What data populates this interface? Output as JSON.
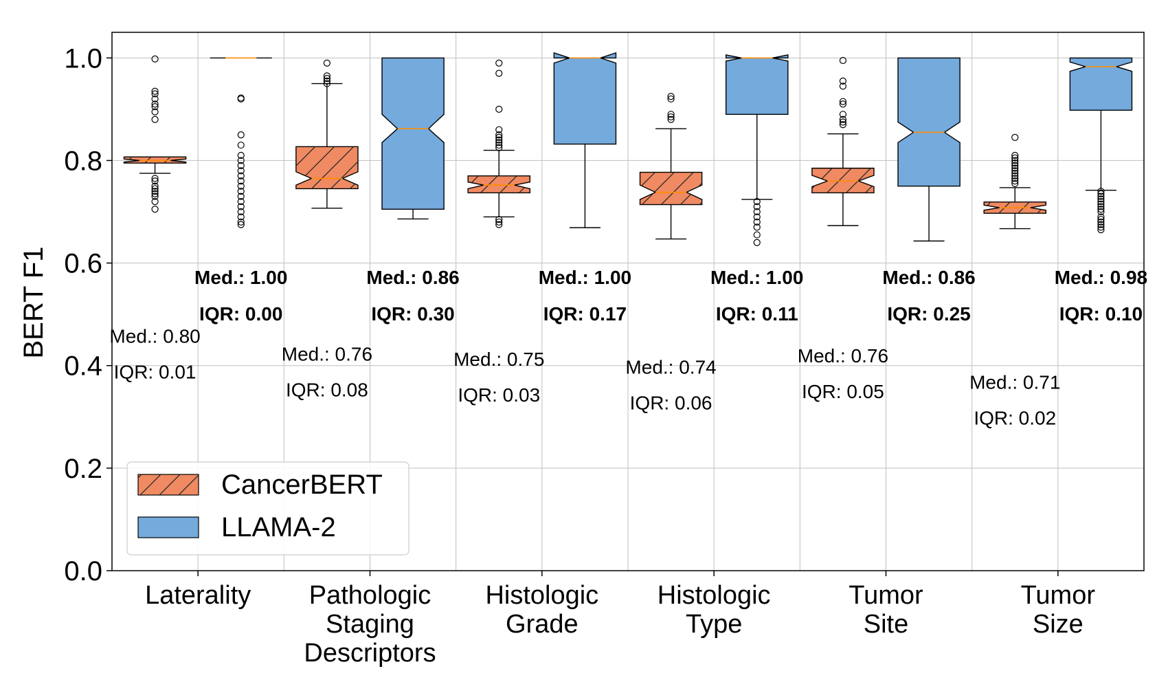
{
  "chart_data": {
    "type": "box",
    "ylabel": "BERT F1",
    "ylim": [
      0.0,
      1.05
    ],
    "yticks": [
      "0.0",
      "0.2",
      "0.4",
      "0.6",
      "0.8",
      "1.0"
    ],
    "grid": true,
    "legend_position": "bottom-left",
    "categories": [
      [
        "Laterality"
      ],
      [
        "Pathologic",
        "Staging",
        "Descriptors"
      ],
      [
        "Histologic",
        "Grade"
      ],
      [
        "Histologic",
        "Type"
      ],
      [
        "Tumor",
        "Site"
      ],
      [
        "Tumor",
        "Size"
      ]
    ],
    "series": [
      {
        "name": "CancerBERT",
        "color": "#ef8a62",
        "hatch": true,
        "boxes": [
          {
            "q1": 0.795,
            "median": 0.8,
            "q3": 0.807,
            "whislo": 0.775,
            "whishi": 0.807,
            "notch_lo": 0.797,
            "notch_hi": 0.803,
            "fliers": [
              0.705,
              0.72,
              0.73,
              0.735,
              0.74,
              0.745,
              0.75,
              0.76,
              0.765,
              0.88,
              0.895,
              0.905,
              0.91,
              0.92,
              0.93,
              0.935,
              0.998
            ],
            "label_median": "Med.: 0.80",
            "label_iqr": "IQR: 0.01",
            "label_y": 0.415
          },
          {
            "q1": 0.745,
            "median": 0.765,
            "q3": 0.827,
            "whislo": 0.707,
            "whishi": 0.95,
            "notch_lo": 0.752,
            "notch_hi": 0.778,
            "fliers": [
              0.95,
              0.955,
              0.96,
              0.965,
              0.99
            ],
            "label_median": "Med.: 0.76",
            "label_iqr": "IQR: 0.08",
            "label_y": 0.38
          },
          {
            "q1": 0.737,
            "median": 0.752,
            "q3": 0.77,
            "whislo": 0.69,
            "whishi": 0.82,
            "notch_lo": 0.745,
            "notch_hi": 0.758,
            "fliers": [
              0.675,
              0.68,
              0.685,
              0.825,
              0.83,
              0.835,
              0.84,
              0.845,
              0.85,
              0.86,
              0.9,
              0.97,
              0.99
            ],
            "label_median": "Med.: 0.75",
            "label_iqr": "IQR: 0.03",
            "label_y": 0.37
          },
          {
            "q1": 0.714,
            "median": 0.738,
            "q3": 0.777,
            "whislo": 0.647,
            "whishi": 0.862,
            "notch_lo": 0.724,
            "notch_hi": 0.752,
            "fliers": [
              0.88,
              0.885,
              0.89,
              0.92,
              0.925
            ],
            "label_median": "Med.: 0.74",
            "label_iqr": "IQR: 0.06",
            "label_y": 0.355
          },
          {
            "q1": 0.737,
            "median": 0.76,
            "q3": 0.785,
            "whislo": 0.673,
            "whishi": 0.852,
            "notch_lo": 0.749,
            "notch_hi": 0.771,
            "fliers": [
              0.87,
              0.875,
              0.88,
              0.89,
              0.91,
              0.915,
              0.945,
              0.955,
              0.995
            ],
            "label_median": "Med.: 0.76",
            "label_iqr": "IQR: 0.05",
            "label_y": 0.377
          },
          {
            "q1": 0.697,
            "median": 0.708,
            "q3": 0.719,
            "whislo": 0.667,
            "whishi": 0.747,
            "notch_lo": 0.703,
            "notch_hi": 0.713,
            "fliers": [
              0.755,
              0.76,
              0.765,
              0.77,
              0.775,
              0.78,
              0.785,
              0.79,
              0.795,
              0.8,
              0.805,
              0.81,
              0.845
            ],
            "label_median": "Med.: 0.71",
            "label_iqr": "IQR: 0.02",
            "label_y": 0.325
          }
        ]
      },
      {
        "name": "LLAMA-2",
        "color": "#74aadc",
        "hatch": false,
        "boxes": [
          {
            "q1": 1.0,
            "median": 1.0,
            "q3": 1.0,
            "whislo": 1.0,
            "whishi": 1.0,
            "notch_lo": 1.0,
            "notch_hi": 1.0,
            "fliers": [
              0.675,
              0.68,
              0.69,
              0.7,
              0.71,
              0.72,
              0.73,
              0.74,
              0.75,
              0.76,
              0.77,
              0.78,
              0.79,
              0.8,
              0.81,
              0.83,
              0.85,
              0.92,
              0.922
            ],
            "label_median": "Med.: 1.00",
            "label_iqr": "IQR: 0.00"
          },
          {
            "q1": 0.705,
            "median": 0.862,
            "q3": 1.0,
            "whislo": 0.686,
            "whishi": 1.0,
            "notch_lo": 0.835,
            "notch_hi": 0.89,
            "fliers": [],
            "label_median": "Med.: 0.86",
            "label_iqr": "IQR: 0.30"
          },
          {
            "q1": 0.832,
            "median": 1.0,
            "q3": 1.0,
            "whislo": 0.669,
            "whishi": 1.0,
            "notch_lo": 0.99,
            "notch_hi": 1.01,
            "fliers": [],
            "label_median": "Med.: 1.00",
            "label_iqr": "IQR: 0.17"
          },
          {
            "q1": 0.89,
            "median": 1.0,
            "q3": 1.0,
            "whislo": 0.724,
            "whishi": 1.0,
            "notch_lo": 0.994,
            "notch_hi": 1.006,
            "fliers": [
              0.64,
              0.655,
              0.67,
              0.68,
              0.69,
              0.7,
              0.71,
              0.72
            ],
            "label_median": "Med.: 1.00",
            "label_iqr": "IQR: 0.11"
          },
          {
            "q1": 0.75,
            "median": 0.855,
            "q3": 1.0,
            "whislo": 0.643,
            "whishi": 1.0,
            "notch_lo": 0.835,
            "notch_hi": 0.875,
            "fliers": [],
            "label_median": "Med.: 0.86",
            "label_iqr": "IQR: 0.25"
          },
          {
            "q1": 0.898,
            "median": 0.983,
            "q3": 1.0,
            "whislo": 0.742,
            "whishi": 1.0,
            "notch_lo": 0.974,
            "notch_hi": 0.992,
            "fliers": [
              0.665,
              0.67,
              0.675,
              0.68,
              0.685,
              0.69,
              0.7,
              0.705,
              0.71,
              0.715,
              0.72,
              0.725,
              0.73,
              0.735,
              0.74
            ],
            "label_median": "Med.: 0.98",
            "label_iqr": "IQR: 0.10"
          }
        ]
      }
    ]
  }
}
